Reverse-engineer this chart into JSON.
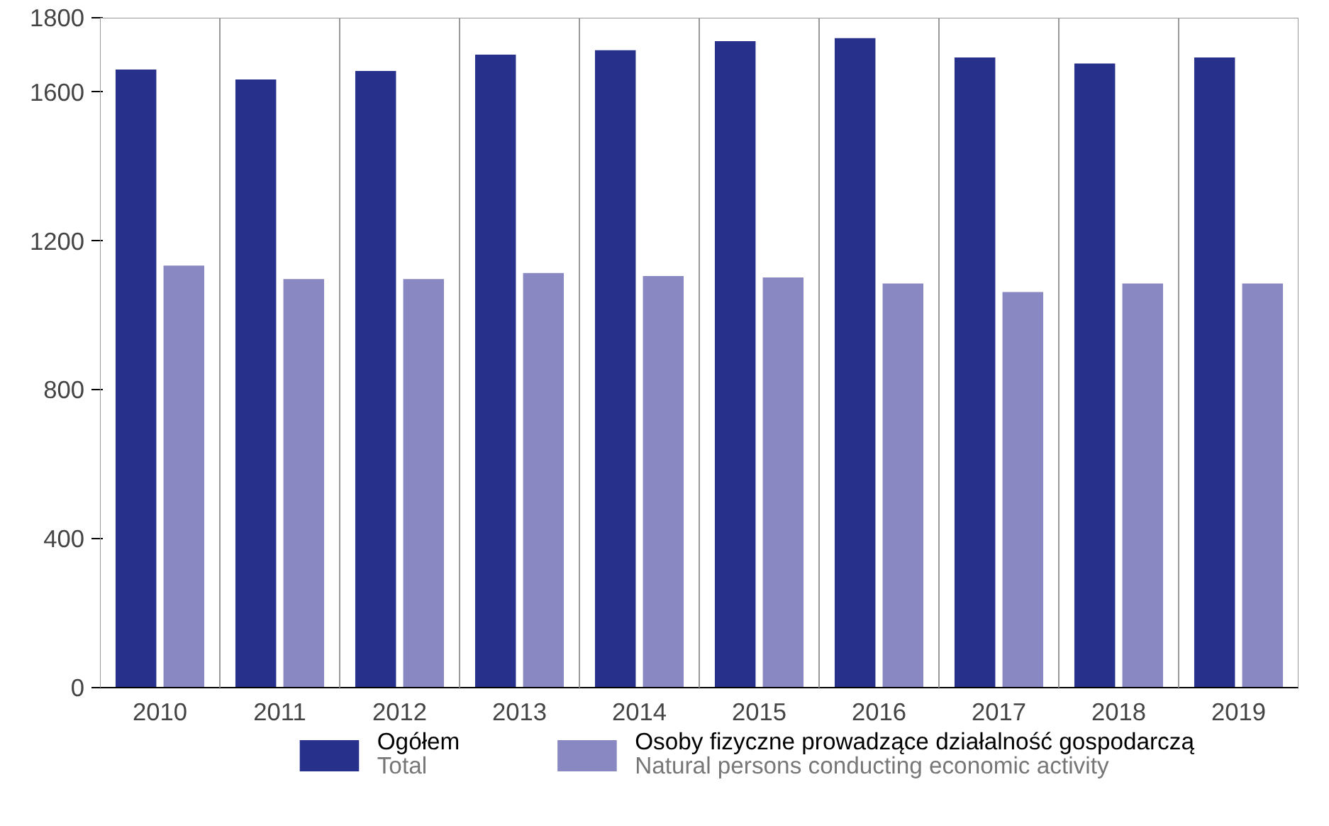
{
  "chart_data": {
    "type": "bar",
    "categories": [
      "2010",
      "2011",
      "2012",
      "2013",
      "2014",
      "2015",
      "2016",
      "2017",
      "2018",
      "2019"
    ],
    "series": [
      {
        "name": "Ogółem\nTotal",
        "color": "#27308a",
        "values": [
          1661,
          1634,
          1657,
          1701,
          1713,
          1737,
          1745,
          1693,
          1677,
          1693
        ]
      },
      {
        "name": "Osoby fizyczne prowadzące działalność gospodarczą\nNatural persons conducting economic activity",
        "color": "#8a88c2",
        "values": [
          1134,
          1098,
          1098,
          1114,
          1106,
          1102,
          1086,
          1063,
          1086,
          1086
        ]
      }
    ],
    "ylim": [
      0,
      1800
    ],
    "yticks": [
      0,
      400,
      800,
      1200,
      1600,
      1800
    ],
    "grid": "x",
    "legend": "bottom"
  }
}
